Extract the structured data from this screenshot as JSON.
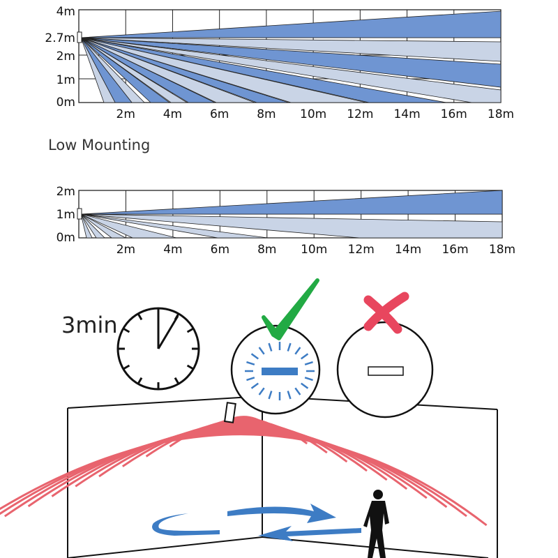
{
  "top_chart": {
    "y_ticks": [
      "4m",
      "2.7m",
      "2m",
      "1m",
      "0m"
    ],
    "x_ticks": [
      "2m",
      "4m",
      "6m",
      "8m",
      "10m",
      "12m",
      "14m",
      "16m",
      "18m"
    ]
  },
  "low_section_title": "Low Mounting",
  "low_chart": {
    "y_ticks": [
      "2m",
      "1m",
      "0m"
    ],
    "x_ticks": [
      "2m",
      "4m",
      "6m",
      "8m",
      "10m",
      "12m",
      "14m",
      "16m",
      "18m"
    ]
  },
  "timer_label": "3min",
  "colors": {
    "beam_dark": "#6f95d2",
    "beam_light": "#c9d4e6",
    "wave": "#e8646e",
    "arrow": "#3d7cc4",
    "check": "#22aa44",
    "cross": "#e8465e"
  }
}
